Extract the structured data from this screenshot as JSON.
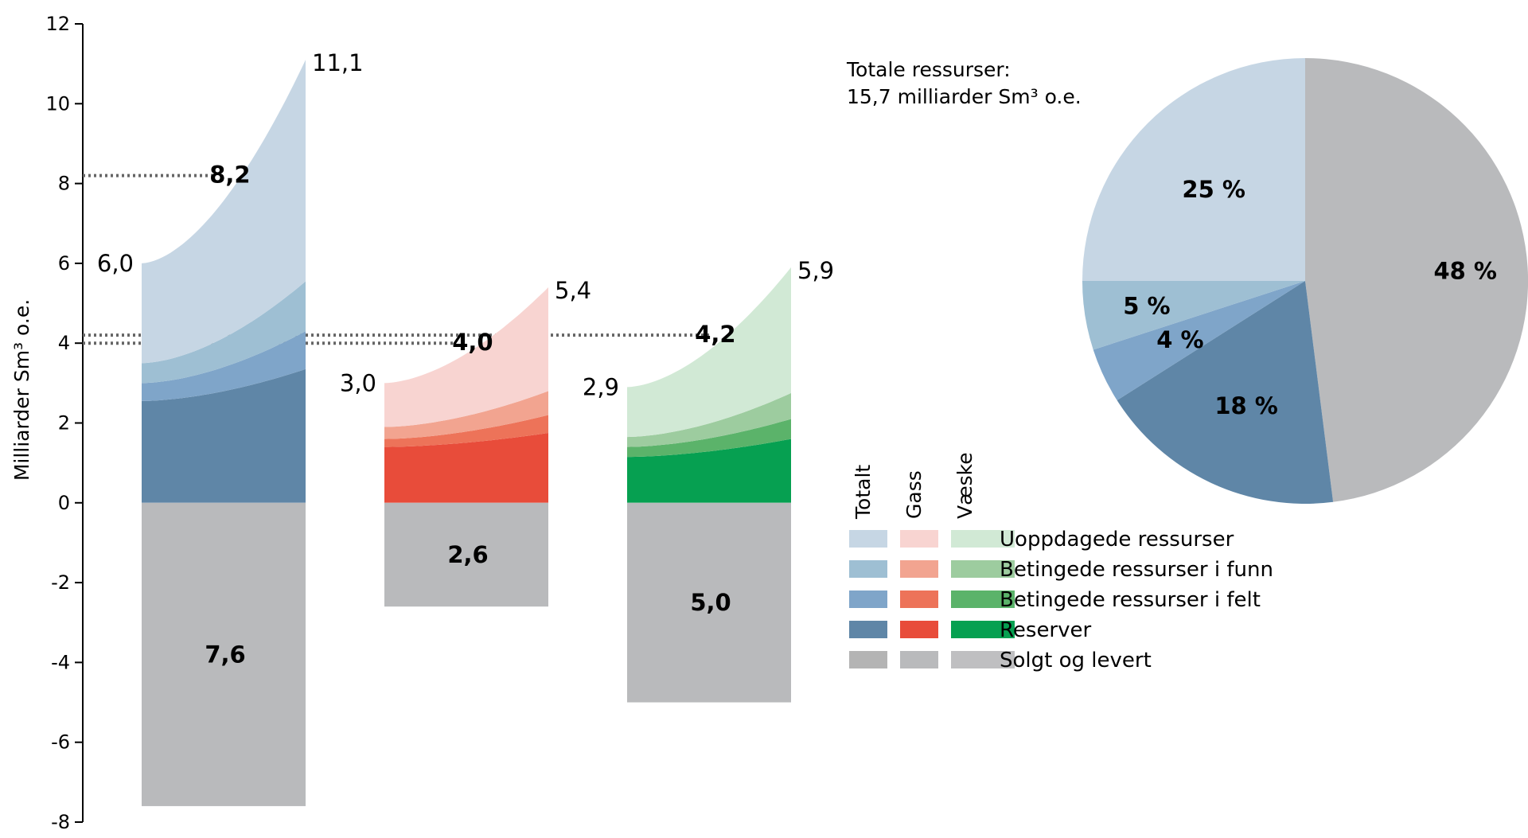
{
  "chart_data": [
    {
      "type": "area",
      "ylabel": "Milliarder Sm³ o.e.",
      "ylim": [
        -8,
        12
      ],
      "yticks": [
        12,
        10,
        8,
        6,
        4,
        2,
        0,
        -2,
        -4,
        -6,
        -8
      ],
      "groups": [
        {
          "name": "Totalt",
          "colors": {
            "uoppdagede": "#c6d6e4",
            "funn": "#9ebfd3",
            "felt": "#7fa5c9",
            "reserver": "#5f86a7",
            "solgt": "#b9babc"
          },
          "start_total": 6.0,
          "end_total": 11.1,
          "start_total_label": "6,0",
          "end_total_label": "11,1",
          "mid_label": "8,2",
          "mid_value": 8.2,
          "sold_value": -7.6,
          "sold_label": "7,6",
          "layers_start": {
            "reserver": 2.55,
            "felt": 3.0,
            "funn": 3.5
          },
          "layers_end": {
            "reserver": 3.35,
            "felt": 4.3,
            "funn": 5.55
          }
        },
        {
          "name": "Gass",
          "colors": {
            "uoppdagede": "#f8d4d1",
            "funn": "#f2a490",
            "felt": "#ed7359",
            "reserver": "#e84c3a",
            "solgt": "#b9babc"
          },
          "start_total": 3.0,
          "end_total": 5.4,
          "start_total_label": "3,0",
          "end_total_label": "5,4",
          "mid_label": "4,0",
          "mid_value": 4.0,
          "sold_value": -2.6,
          "sold_label": "2,6",
          "layers_start": {
            "reserver": 1.4,
            "felt": 1.6,
            "funn": 1.9
          },
          "layers_end": {
            "reserver": 1.75,
            "felt": 2.2,
            "funn": 2.8
          }
        },
        {
          "name": "Væske",
          "colors": {
            "uoppdagede": "#d1e9d5",
            "funn": "#9dcc9f",
            "felt": "#5bb36a",
            "reserver": "#06a051",
            "solgt": "#b9babc"
          },
          "start_total": 2.9,
          "end_total": 5.9,
          "start_total_label": "2,9",
          "end_total_label": "5,9",
          "mid_label": "4,2",
          "mid_value": 4.2,
          "sold_value": -5.0,
          "sold_label": "5,0",
          "layers_start": {
            "reserver": 1.15,
            "felt": 1.4,
            "funn": 1.65
          },
          "layers_end": {
            "reserver": 1.6,
            "felt": 2.1,
            "funn": 2.75
          }
        }
      ]
    },
    {
      "type": "pie",
      "note_line1": "Totale ressurser:",
      "note_line2": "15,7 milliarder Sm³ o.e.",
      "slices": [
        {
          "name": "Solgt og levert",
          "value": 48,
          "label": "48 %",
          "color": "#b9babc"
        },
        {
          "name": "Reserver",
          "value": 18,
          "label": "18 %",
          "color": "#5f86a7"
        },
        {
          "name": "Betingede ressurser i felt",
          "value": 4,
          "label": "4 %",
          "color": "#7fa5c9"
        },
        {
          "name": "Betingede ressurser i funn",
          "value": 5,
          "label": "5 %",
          "color": "#9ebfd3"
        },
        {
          "name": "Uoppdagede ressurser",
          "value": 25,
          "label": "25 %",
          "color": "#c6d6e4"
        }
      ]
    }
  ],
  "legend": {
    "columns": [
      "Totalt",
      "Gass",
      "Væske"
    ],
    "rows": [
      {
        "label": "Uoppdagede ressurser",
        "colors": [
          "#c6d6e4",
          "#f8d4d1",
          "#d1e9d5"
        ]
      },
      {
        "label": "Betingede ressurser i funn",
        "colors": [
          "#9ebfd3",
          "#f2a490",
          "#9dcc9f"
        ]
      },
      {
        "label": "Betingede ressurser i felt",
        "colors": [
          "#7fa5c9",
          "#ed7359",
          "#5bb36a"
        ]
      },
      {
        "label": "Reserver",
        "colors": [
          "#5f86a7",
          "#e84c3a",
          "#06a051"
        ]
      },
      {
        "label": "Solgt og levert",
        "colors": [
          "#b4b4b4",
          "#b9babc",
          "#bfbfc1"
        ]
      }
    ]
  }
}
